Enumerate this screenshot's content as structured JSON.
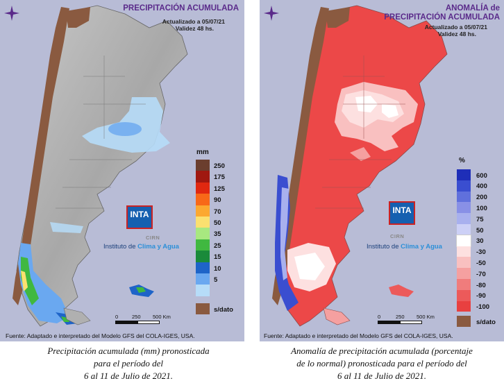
{
  "left_panel": {
    "title": "PRECIPITACIÓN ACUMULADA",
    "updated": "Actualizado a 05/07/21",
    "validity": "Validez 48 hs.",
    "legend_unit": "mm",
    "legend": [
      {
        "label": "250",
        "color": "#6b3e2e"
      },
      {
        "label": "175",
        "color": "#a01810"
      },
      {
        "label": "125",
        "color": "#e02810"
      },
      {
        "label": "90",
        "color": "#f86818"
      },
      {
        "label": "70",
        "color": "#fca830"
      },
      {
        "label": "50",
        "color": "#fbe070"
      },
      {
        "label": "35",
        "color": "#a8e880"
      },
      {
        "label": "25",
        "color": "#40b840"
      },
      {
        "label": "15",
        "color": "#1a8a3a"
      },
      {
        "label": "10",
        "color": "#1e64c8"
      },
      {
        "label": "5",
        "color": "#6aa8f0"
      },
      {
        "label": "",
        "color": "#b6dcf8"
      },
      {
        "label": "s/dato",
        "color": "#8a5a40"
      }
    ],
    "logo_text": "INTA",
    "logo_sub": "CIRN",
    "institute_prefix": "Instituto de ",
    "institute_highlight": "Clima y Agua",
    "scale_labels": [
      "0",
      "250",
      "500 Km"
    ],
    "source": "Fuente: Adaptado e interpretado del Modelo GFS del COLA-IGES, USA.",
    "caption_lines": [
      "Precipitación acumulada (mm) pronosticada",
      "para el período del",
      "6 al 11 de Julio de 2021."
    ]
  },
  "right_panel": {
    "title_line1": "ANOMALÍA de",
    "title_line2": "PRECIPITACIÓN ACUMULADA",
    "updated": "Actualizado a 05/07/21",
    "validity": "Validez 48 hs.",
    "legend_unit": "%",
    "legend": [
      {
        "label": "600",
        "color": "#1e2eb8"
      },
      {
        "label": "400",
        "color": "#3a4ed0"
      },
      {
        "label": "200",
        "color": "#6070dc"
      },
      {
        "label": "100",
        "color": "#8890e6"
      },
      {
        "label": "75",
        "color": "#a8b0ee"
      },
      {
        "label": "50",
        "color": "#ccd0f6"
      },
      {
        "label": "30",
        "color": "#ffffff"
      },
      {
        "label": "-30",
        "color": "#fde0e0"
      },
      {
        "label": "-50",
        "color": "#f9c0c0"
      },
      {
        "label": "-70",
        "color": "#f5a0a0"
      },
      {
        "label": "-80",
        "color": "#f07c7c"
      },
      {
        "label": "-90",
        "color": "#ec5a5a"
      },
      {
        "label": "-100",
        "color": "#e84040"
      },
      {
        "label": "s/dato",
        "color": "#8a5a40"
      }
    ],
    "logo_text": "INTA",
    "logo_sub": "CIRN",
    "institute_prefix": "Instituto de ",
    "institute_highlight": "Clima y Agua",
    "scale_labels": [
      "0",
      "250",
      "500 Km"
    ],
    "source": "Fuente: Adaptado e interpretado del Modelo GFS del COLA-IGES, USA.",
    "caption_lines": [
      "Anomalía de precipitación acumulada (porcentaje",
      "de lo normal) pronosticada para el período del",
      "6 al 11 de Julio de 2021."
    ]
  }
}
